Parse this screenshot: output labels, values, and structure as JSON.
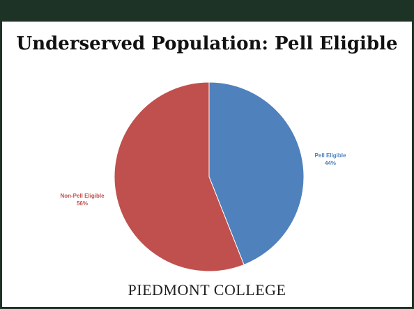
{
  "slide": {
    "title": "Underserved Population: Pell Eligible",
    "footer": "PIEDMONT COLLEGE"
  },
  "chart_data": {
    "type": "pie",
    "slices": [
      {
        "label": "Pell Eligible",
        "value": 44,
        "value_label": "44%",
        "color": "#4f81bd"
      },
      {
        "label": "Non-Pell Eligible",
        "value": 56,
        "value_label": "56%",
        "color": "#c0504d"
      }
    ],
    "start": "top, clockwise",
    "legend": "none",
    "data_labels": "outside"
  }
}
